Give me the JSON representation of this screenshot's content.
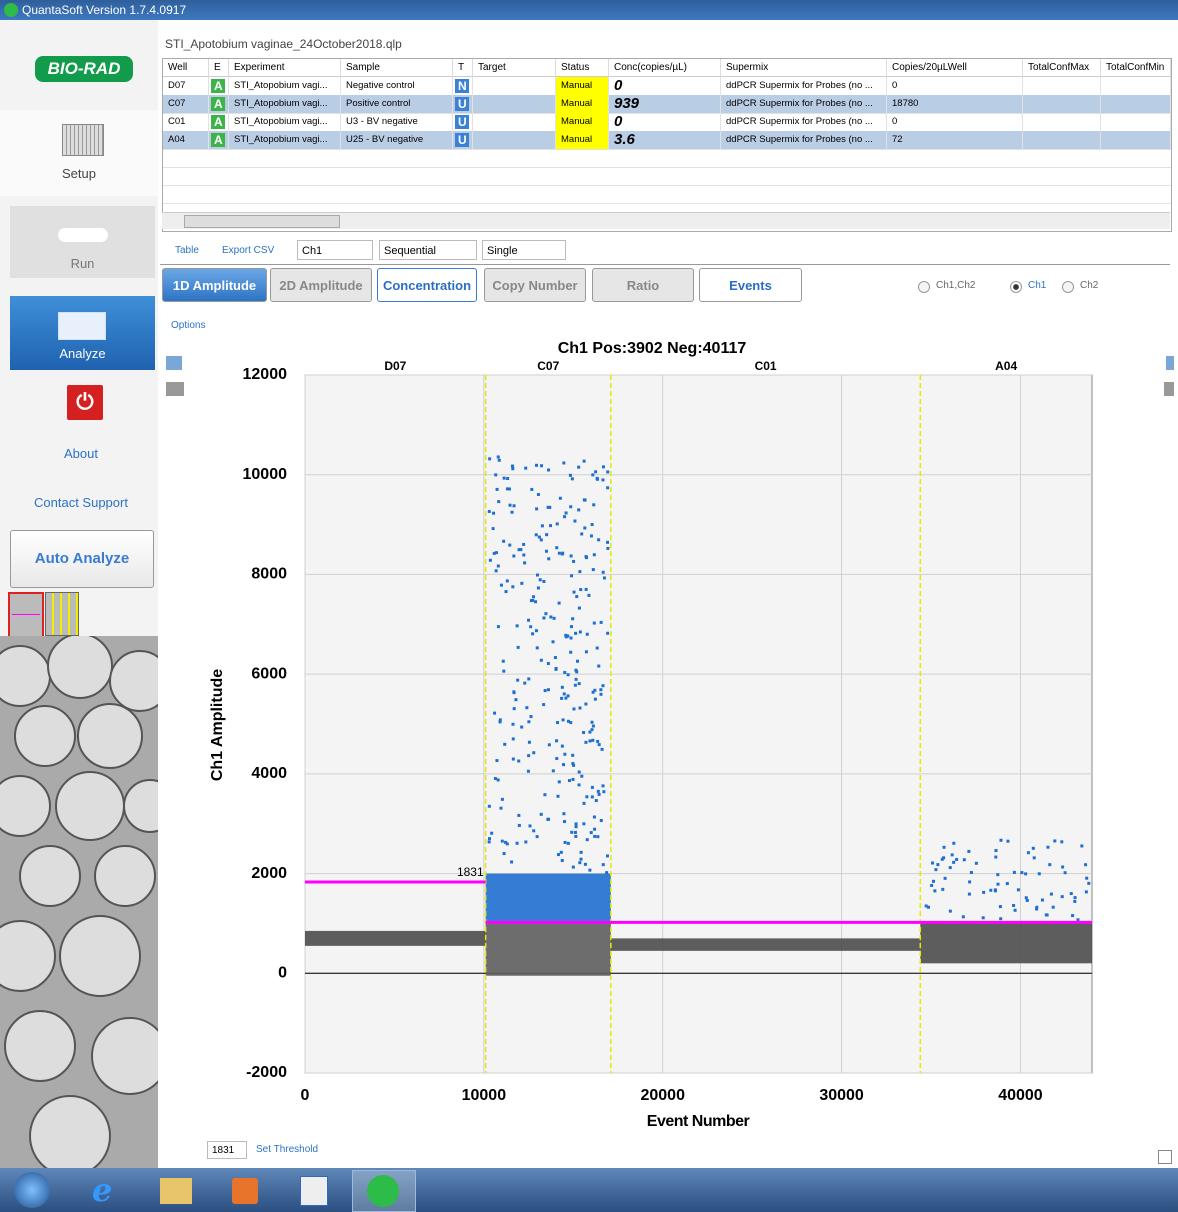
{
  "window": {
    "title": "QuantaSoft Version 1.7.4.0917"
  },
  "sidebar": {
    "logo": "BIO-RAD",
    "items": [
      "Setup",
      "Run",
      "Analyze",
      "About",
      "Contact Support"
    ],
    "auto_analyze": "Auto Analyze"
  },
  "file_name": "STI_Apotobium vaginae_24October2018.qlp",
  "table": {
    "columns": [
      "Well",
      "E",
      "Experiment",
      "Sample",
      "T",
      "Target",
      "Status",
      "Conc(copies/µL)",
      "Supermix",
      "Copies/20µLWell",
      "TotalConfMax",
      "TotalConfMin"
    ],
    "rows": [
      [
        "D07",
        "A",
        "STI_Atopobium vagi...",
        "Negative control",
        "N",
        null,
        "Manual",
        0,
        "ddPCR Supermix for Probes (no ...",
        0,
        null,
        null
      ],
      [
        "C07",
        "A",
        "STI_Atopobium vagi...",
        "Positive control",
        "U",
        null,
        "Manual",
        939,
        "ddPCR Supermix for Probes (no ...",
        18780,
        null,
        null
      ],
      [
        "C01",
        "A",
        "STI_Atopobium vagi...",
        "U3 - BV negative",
        "U",
        null,
        "Manual",
        0,
        "ddPCR Supermix for Probes (no ...",
        0,
        null,
        null
      ],
      [
        "A04",
        "A",
        "STI_Atopobium vagi...",
        "U25 - BV negative",
        "U",
        null,
        "Manual",
        3.6,
        "ddPCR Supermix for Probes (no ...",
        72,
        null,
        null
      ]
    ]
  },
  "toolbar": {
    "table": "Table",
    "export": "Export CSV",
    "channel": "Ch1",
    "mode": "Sequential",
    "view": "Single"
  },
  "tabs": [
    "1D Amplitude",
    "2D Amplitude",
    "Concentration",
    "Copy Number",
    "Ratio",
    "Events"
  ],
  "radios": [
    "Ch1,Ch2",
    "Ch1",
    "Ch2"
  ],
  "options": "Options",
  "set_threshold": "Set Threshold",
  "chart_data": {
    "type": "scatter",
    "title": "Ch1 Pos:3902 Neg:40117",
    "x_label": "Event Number",
    "y_label": "Ch1 Amplitude",
    "xlim": [
      0,
      44000
    ],
    "ylim": [
      -2000,
      12000
    ],
    "xticks": [
      0,
      10000,
      20000,
      30000,
      40000
    ],
    "yticks": [
      -2000,
      0,
      2000,
      4000,
      6000,
      8000,
      10000,
      12000
    ],
    "grid": true,
    "wells": [
      {
        "name": "D07",
        "start": 0,
        "end": 10100,
        "bands": [
          {
            "low": 550,
            "high": 850,
            "color": "#4d4d4d",
            "style": "dense"
          }
        ]
      },
      {
        "name": "C07",
        "start": 10100,
        "end": 17100,
        "bands": [
          {
            "low": -50,
            "high": 1000,
            "color": "#5e5e5e",
            "style": "dense"
          },
          {
            "low": 1000,
            "high": 2000,
            "color": "#1f6fd0",
            "style": "dense"
          },
          {
            "low": 2000,
            "high": 10400,
            "color": "#1f6fd0",
            "style": "sparse"
          }
        ]
      },
      {
        "name": "C01",
        "start": 17100,
        "end": 34400,
        "bands": [
          {
            "low": 450,
            "high": 700,
            "color": "#4d4d4d",
            "style": "dense"
          }
        ]
      },
      {
        "name": "A04",
        "start": 34400,
        "end": 44000,
        "bands": [
          {
            "low": 200,
            "high": 1000,
            "color": "#4d4d4d",
            "style": "dense"
          },
          {
            "low": 1100,
            "high": 2700,
            "color": "#1f6fd0",
            "style": "sparse"
          }
        ]
      }
    ],
    "thresholds": [
      {
        "start": 0,
        "end": 10100,
        "value": 1831
      },
      {
        "start": 10100,
        "end": 44000,
        "value": 1020
      }
    ],
    "threshold_color": "#ff00ff",
    "boundary_color": "#e8e800"
  }
}
